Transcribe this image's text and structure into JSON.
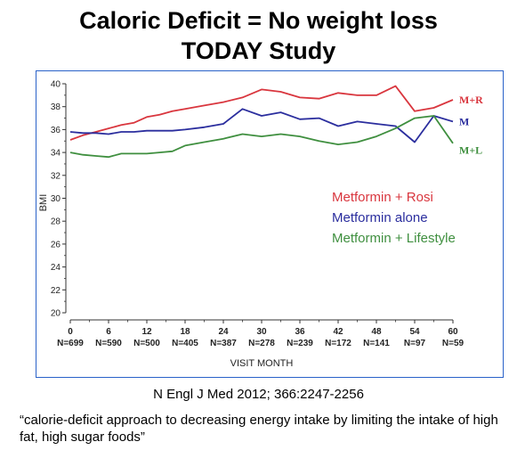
{
  "slide": {
    "title_line1": "Caloric Deficit = No weight loss",
    "title_line2": "TODAY Study",
    "citation": "N Engl J Med 2012; 366:2247-2256",
    "quote": "“calorie-deficit approach to decreasing energy intake by limiting the intake of high fat, high sugar foods”"
  },
  "chart_data": {
    "type": "line",
    "xlabel": "VISIT MONTH",
    "ylabel": "BMI",
    "xlim": [
      0,
      60
    ],
    "ylim": [
      20,
      40
    ],
    "yticks": [
      20,
      22,
      24,
      26,
      28,
      30,
      32,
      34,
      36,
      38,
      40
    ],
    "xticks": [
      0,
      6,
      12,
      18,
      24,
      30,
      36,
      42,
      48,
      54,
      60
    ],
    "n_labels": [
      "N=699",
      "N=590",
      "N=500",
      "N=405",
      "N=387",
      "N=278",
      "N=239",
      "N=172",
      "N=141",
      "N=97",
      "N=59"
    ],
    "grid": false,
    "legend_position": "center-right",
    "series": [
      {
        "name": "Metformin + Rosi",
        "end_label": "M+R",
        "color": "#d9363e",
        "x": [
          0,
          2,
          4,
          6,
          8,
          10,
          12,
          14,
          16,
          18,
          21,
          24,
          27,
          30,
          33,
          36,
          39,
          42,
          45,
          48,
          51,
          54,
          57,
          60
        ],
        "y": [
          35.1,
          35.5,
          35.8,
          36.1,
          36.4,
          36.6,
          37.1,
          37.3,
          37.6,
          37.8,
          38.1,
          38.4,
          38.8,
          39.5,
          39.3,
          38.8,
          38.7,
          39.2,
          39.0,
          39.0,
          39.8,
          37.6,
          37.9,
          38.6
        ]
      },
      {
        "name": "Metformin alone",
        "end_label": "M",
        "color": "#2b2e9e",
        "x": [
          0,
          2,
          4,
          6,
          8,
          10,
          12,
          14,
          16,
          18,
          21,
          24,
          27,
          30,
          33,
          36,
          39,
          42,
          45,
          48,
          51,
          54,
          57,
          60
        ],
        "y": [
          35.8,
          35.7,
          35.7,
          35.6,
          35.8,
          35.8,
          35.9,
          35.9,
          35.9,
          36.0,
          36.2,
          36.5,
          37.8,
          37.2,
          37.5,
          36.9,
          37.0,
          36.3,
          36.7,
          36.5,
          36.3,
          34.9,
          37.2,
          36.7
        ]
      },
      {
        "name": "Metformin + Lifestyle",
        "end_label": "M+L",
        "color": "#3f8f3f",
        "x": [
          0,
          2,
          4,
          6,
          8,
          10,
          12,
          14,
          16,
          18,
          21,
          24,
          27,
          30,
          33,
          36,
          39,
          42,
          45,
          48,
          51,
          54,
          57,
          60
        ],
        "y": [
          34.0,
          33.8,
          33.7,
          33.6,
          33.9,
          33.9,
          33.9,
          34.0,
          34.1,
          34.6,
          34.9,
          35.2,
          35.6,
          35.4,
          35.6,
          35.4,
          35.0,
          34.7,
          34.9,
          35.4,
          36.1,
          37.0,
          37.2,
          34.8
        ]
      }
    ]
  }
}
